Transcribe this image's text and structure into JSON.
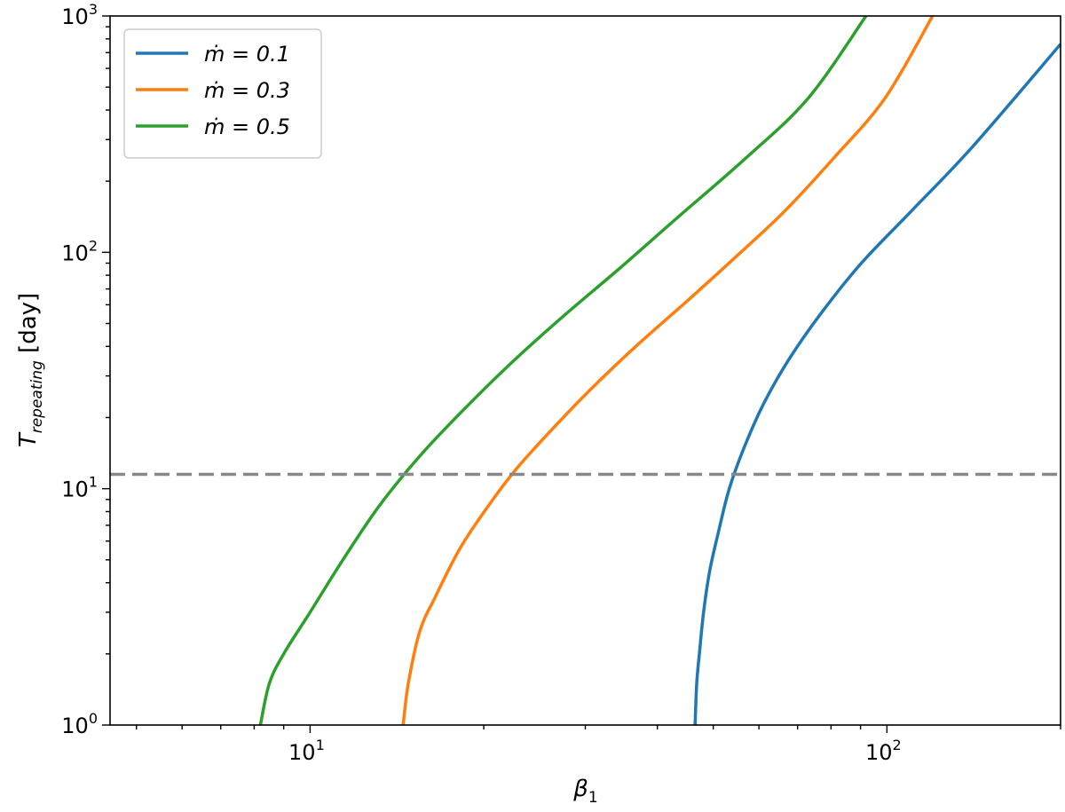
{
  "chart_data": {
    "type": "line",
    "xscale": "log",
    "yscale": "log",
    "xlim": [
      4.5,
      200
    ],
    "ylim": [
      1,
      1000
    ],
    "xlabel": "β",
    "xlabel_sub": "1",
    "ylabel": "T",
    "ylabel_sub": "repeating",
    "ylabel_unit": " [day]",
    "x_ticks": [
      {
        "value": 10,
        "base": "10",
        "exp": "1"
      },
      {
        "value": 100,
        "base": "10",
        "exp": "2"
      }
    ],
    "y_ticks": [
      {
        "value": 1,
        "base": "10",
        "exp": "0"
      },
      {
        "value": 10,
        "base": "10",
        "exp": "1"
      },
      {
        "value": 100,
        "base": "10",
        "exp": "2"
      },
      {
        "value": 1000,
        "base": "10",
        "exp": "3"
      }
    ],
    "legend_position": "top-left",
    "series": [
      {
        "name": "ṁ = 0.1",
        "color": "#1f77b4",
        "x": [
          46.5,
          46.8,
          47.3,
          48.1,
          49.3,
          51.0,
          53.3,
          56.6,
          61.2,
          67.5,
          76.8,
          90.3,
          110.4,
          140.8,
          200.0
        ],
        "y": [
          1.0,
          1.5,
          2.0,
          3.0,
          4.5,
          6.5,
          10.0,
          15.0,
          23.0,
          35.0,
          55.0,
          90.0,
          150.0,
          280.0,
          760.0
        ]
      },
      {
        "name": "ṁ = 0.3",
        "color": "#ff7f0e",
        "x": [
          14.5,
          14.8,
          15.5,
          16.5,
          18.2,
          20.4,
          22.7,
          25.8,
          30.5,
          36.7,
          45.3,
          55.8,
          66.6,
          80.8,
          99.3,
          120.0
        ],
        "y": [
          1.0,
          1.5,
          2.5,
          3.5,
          5.6,
          8.5,
          12.0,
          17.0,
          26.0,
          40.0,
          63.0,
          100.0,
          150.0,
          250.0,
          450.0,
          1000.0
        ]
      },
      {
        "name": "ṁ = 0.5",
        "color": "#2ca02c",
        "x": [
          8.2,
          8.5,
          9.0,
          10.0,
          11.4,
          13.2,
          15.6,
          18.6,
          22.6,
          27.8,
          34.3,
          43.3,
          56.9,
          73.1,
          92.0
        ],
        "y": [
          1.0,
          1.5,
          2.0,
          3.0,
          5.0,
          8.5,
          14.0,
          22.0,
          35.0,
          55.0,
          85.0,
          140.0,
          250.0,
          450.0,
          1000.0
        ]
      },
      {
        "name": "",
        "color": "#888888",
        "style": "dashed",
        "x": [
          4.5,
          200
        ],
        "y": [
          11.5,
          11.5
        ]
      }
    ]
  }
}
